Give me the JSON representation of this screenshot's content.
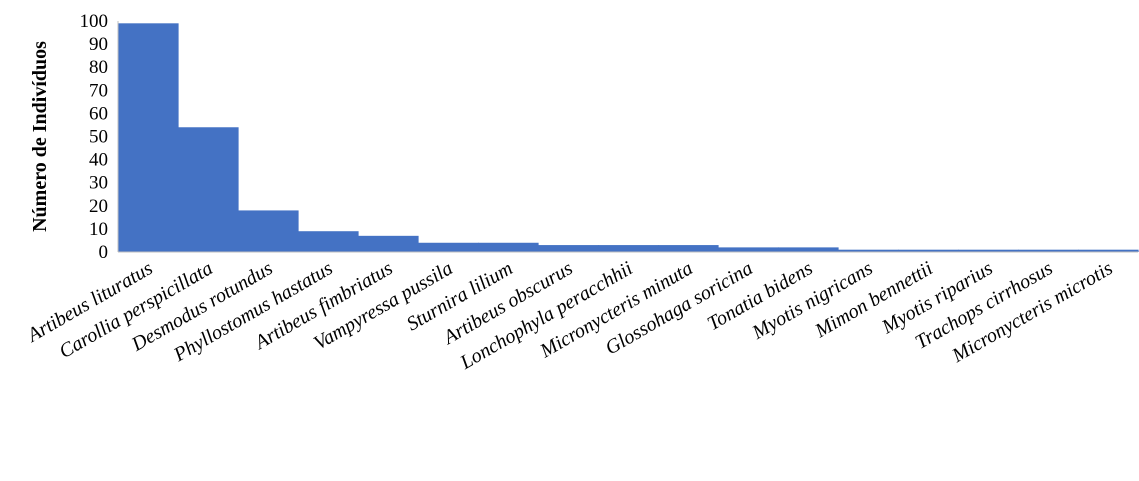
{
  "chart_data": {
    "type": "bar",
    "ylabel": "Número de Indivíduos",
    "ylim": [
      0,
      100
    ],
    "yticks": [
      0,
      10,
      20,
      30,
      40,
      50,
      60,
      70,
      80,
      90,
      100
    ],
    "grid": false,
    "bar_color": "#4472C4",
    "categories": [
      "Artibeus lituratus",
      "Carollia perspicillata",
      "Desmodus rotundus",
      "Phyllostomus hastatus",
      "Artibeus fimbriatus",
      "Vampyressa pussila",
      "Sturnira lilium",
      "Artibeus obscurus",
      "Lonchophyla peracchhii",
      "Micronycteris minuta",
      "Glossohaga soricina",
      "Tonatia bidens",
      "Myotis nigricans",
      "Mimon bennettii",
      "Myotis riparius",
      "Trachops cirrhosus",
      "Micronycteris microtis"
    ],
    "values": [
      99,
      54,
      18,
      9,
      7,
      4,
      4,
      3,
      3,
      3,
      2,
      2,
      1,
      1,
      1,
      1,
      1
    ]
  }
}
